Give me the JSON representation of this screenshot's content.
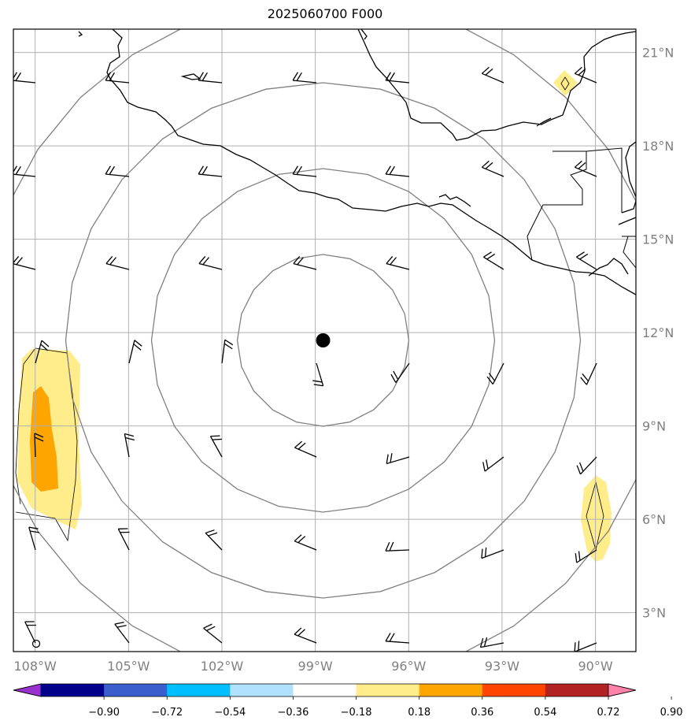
{
  "title": "2025060700 F000",
  "lon_labels": [
    "108°W",
    "105°W",
    "102°W",
    "99°W",
    "96°W",
    "93°W",
    "90°W"
  ],
  "lat_labels": [
    "21°N",
    "18°N",
    "15°N",
    "12°N",
    "9°N",
    "6°N",
    "3°N"
  ],
  "lon_values": [
    -108,
    -105,
    -102,
    -99,
    -96,
    -93,
    -90
  ],
  "lat_values": [
    21,
    18,
    15,
    12,
    9,
    6,
    3
  ],
  "extent": {
    "lon_min": -108.7,
    "lon_max": -88.7,
    "lat_min": 1.75,
    "lat_max": 21.75
  },
  "storm_center": {
    "lon": -98.75,
    "lat": 11.75
  },
  "range_rings": {
    "count": 4
  },
  "colorbar": {
    "ticks": [
      "−0.90",
      "−0.72",
      "−0.54",
      "−0.36",
      "−0.18",
      "0.18",
      "0.36",
      "0.54",
      "0.72",
      "0.90"
    ],
    "colors": [
      "#9932cc",
      "#00008b",
      "#3a5fcd",
      "#00bfff",
      "#b0e2ff",
      "#ffffff",
      "#ffec8b",
      "#ffa500",
      "#ff4500",
      "#b22222",
      "#ff82ab"
    ]
  },
  "colors": {
    "grid": "#b0b0b0",
    "ring": "#808080",
    "coast": "#000000",
    "fill_light": "#ffec8b",
    "fill_dark": "#ffa500"
  }
}
